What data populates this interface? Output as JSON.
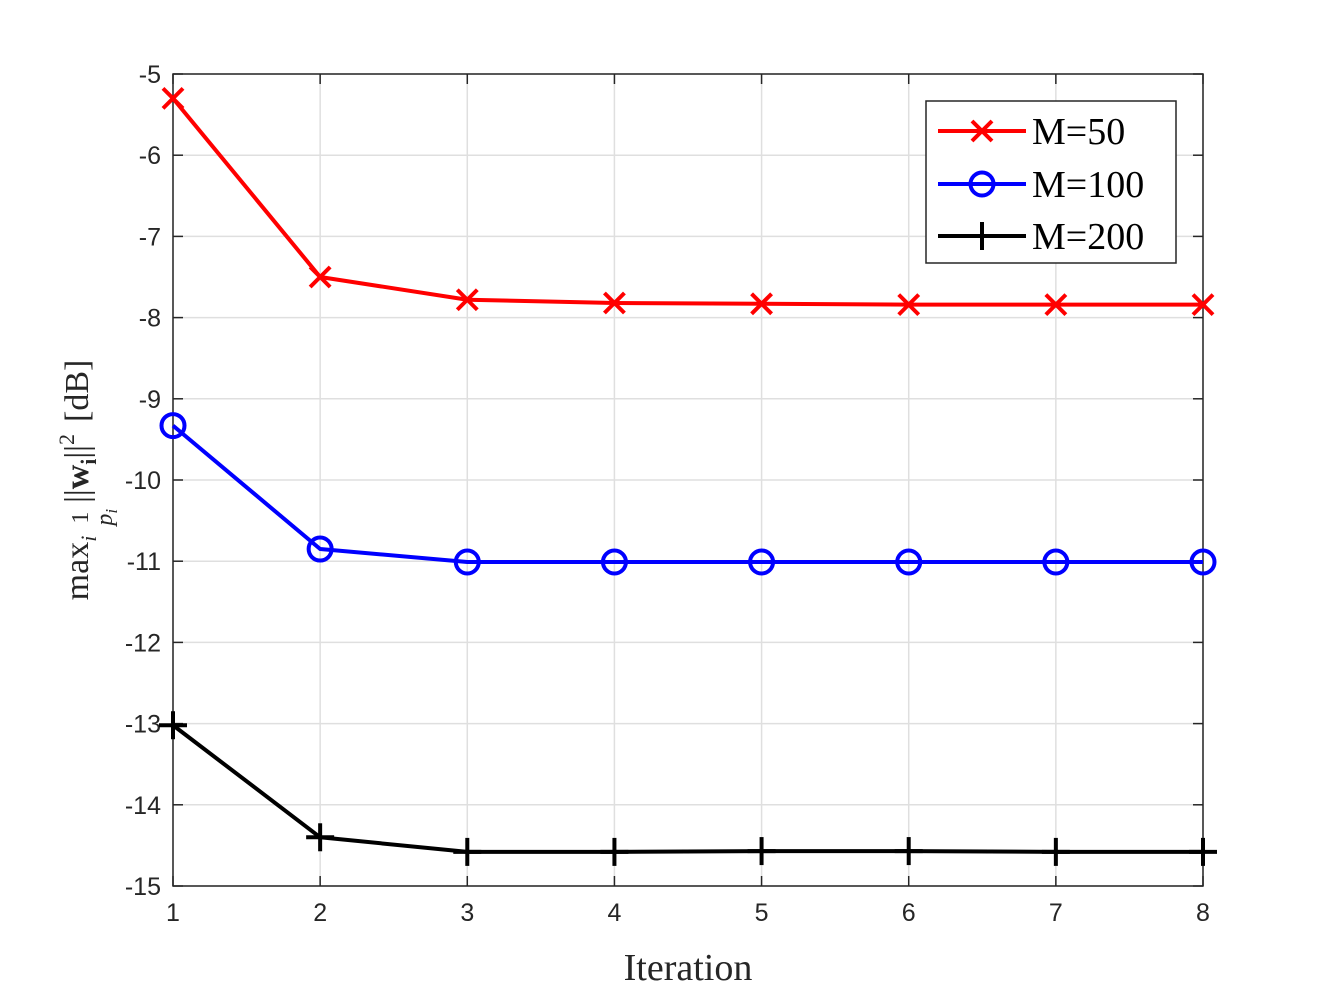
{
  "chart_data": {
    "type": "line",
    "title": "",
    "xlabel": "Iteration",
    "ylabel": "max_i (1/p_i) ||w_i||^2 [dB]",
    "ylabel_parts": {
      "max": "max",
      "i_sub": "i",
      "frac_num": "1",
      "frac_den": "p",
      "frac_den_sub": "i",
      "norm_open": "||",
      "w": "w",
      "w_sub": "i",
      "norm_close": "||",
      "sup": "2",
      "unit": "[dB]"
    },
    "x": [
      1,
      2,
      3,
      4,
      5,
      6,
      7,
      8
    ],
    "xticks": [
      "1",
      "2",
      "3",
      "4",
      "5",
      "6",
      "7",
      "8"
    ],
    "xlim": [
      1,
      8
    ],
    "yticks": [
      "-5",
      "-6",
      "-7",
      "-8",
      "-9",
      "-10",
      "-11",
      "-12",
      "-13",
      "-14",
      "-15"
    ],
    "ytick_values": [
      -5,
      -6,
      -7,
      -8,
      -9,
      -10,
      -11,
      -12,
      -13,
      -14,
      -15
    ],
    "ylim": [
      -15,
      -5
    ],
    "grid": true,
    "legend_position": "top-right",
    "series": [
      {
        "name": "M=50",
        "color": "#ff0000",
        "marker": "x",
        "values": [
          -5.3,
          -7.5,
          -7.78,
          -7.82,
          -7.83,
          -7.84,
          -7.84,
          -7.84
        ]
      },
      {
        "name": "M=100",
        "color": "#0000ff",
        "marker": "o",
        "values": [
          -9.33,
          -10.85,
          -11.01,
          -11.01,
          -11.01,
          -11.01,
          -11.01,
          -11.01
        ]
      },
      {
        "name": "M=200",
        "color": "#000000",
        "marker": "+",
        "values": [
          -13.02,
          -14.4,
          -14.58,
          -14.58,
          -14.57,
          -14.57,
          -14.58,
          -14.58
        ]
      }
    ]
  }
}
